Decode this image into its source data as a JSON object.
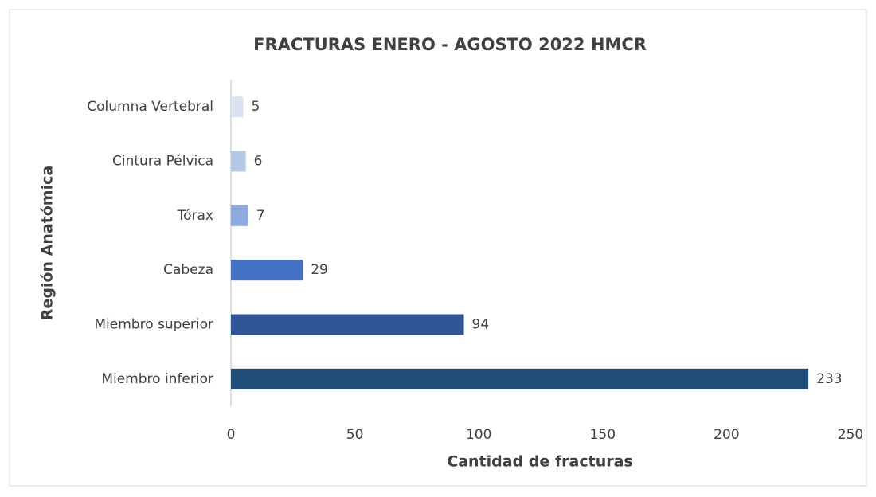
{
  "chart_data": {
    "type": "barh",
    "title": "FRACTURAS ENERO - AGOSTO 2022 HMCR",
    "xlabel": "Cantidad de fracturas",
    "ylabel": "Región Anatómica",
    "categories": [
      "Columna Vertebral",
      "Cintura Pélvica",
      "Tórax",
      "Cabeza",
      "Miembro superior",
      "Miembro inferior"
    ],
    "values": [
      5,
      6,
      7,
      29,
      94,
      233
    ],
    "colors": [
      "#dae3f3",
      "#b4c7e7",
      "#8faadc",
      "#4472c4",
      "#2f5597",
      "#1f4e79"
    ],
    "xlim": [
      0,
      250
    ],
    "xticks": [
      0,
      50,
      100,
      150,
      200,
      250
    ],
    "grid": false
  }
}
